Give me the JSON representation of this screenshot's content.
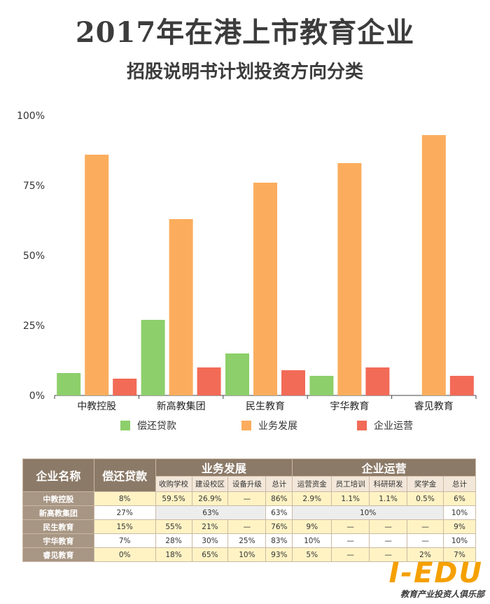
{
  "title": "2017年在港上市教育企业",
  "subtitle": "招股说明书计划投资方向分类",
  "chart_data": {
    "type": "bar",
    "categories": [
      "中教控股",
      "新高教集团",
      "民生教育",
      "宇华教育",
      "睿见教育"
    ],
    "series": [
      {
        "name": "偿还贷款",
        "color": "#8dcf6b",
        "values": [
          8,
          27,
          15,
          7,
          0
        ]
      },
      {
        "name": "业务发展",
        "color": "#fbad5d",
        "values": [
          86,
          63,
          76,
          83,
          93
        ]
      },
      {
        "name": "企业运营",
        "color": "#f26b57",
        "values": [
          6,
          10,
          9,
          10,
          7
        ]
      }
    ],
    "ylim": [
      0,
      100
    ],
    "yticks": [
      "0%",
      "25%",
      "50%",
      "75%",
      "100%"
    ],
    "ytick_values": [
      0,
      25,
      50,
      75,
      100
    ],
    "legend_position": "bottom",
    "grid": false
  },
  "table": {
    "headers": {
      "company": "企业名称",
      "repay": "偿还贷款",
      "biz": "业务发展",
      "ops": "企业运营"
    },
    "subheaders": [
      "收购学校",
      "建设校区",
      "设备升级",
      "总计",
      "运营资金",
      "员工培训",
      "科研研发",
      "奖学金",
      "总计"
    ],
    "rows": [
      {
        "name": "中教控股",
        "cells": [
          "8%",
          "59.5%",
          "26.9%",
          "—",
          "86%",
          "2.9%",
          "1.1%",
          "1.1%",
          "0.5%",
          "6%"
        ]
      },
      {
        "name": "新高教集团",
        "cells": [
          "27%",
          "63%",
          "63%",
          "10%",
          "10%"
        ]
      },
      {
        "name": "民生教育",
        "cells": [
          "15%",
          "55%",
          "21%",
          "—",
          "76%",
          "9%",
          "—",
          "—",
          "—",
          "9%"
        ]
      },
      {
        "name": "宇华教育",
        "cells": [
          "7%",
          "28%",
          "30%",
          "25%",
          "83%",
          "10%",
          "—",
          "—",
          "—",
          "10%"
        ]
      },
      {
        "name": "睿见教育",
        "cells": [
          "0%",
          "18%",
          "65%",
          "10%",
          "93%",
          "5%",
          "—",
          "—",
          "2%",
          "7%"
        ]
      }
    ]
  },
  "logo": {
    "main": "I-EDU",
    "sub": "教育产业投资人俱乐部"
  }
}
